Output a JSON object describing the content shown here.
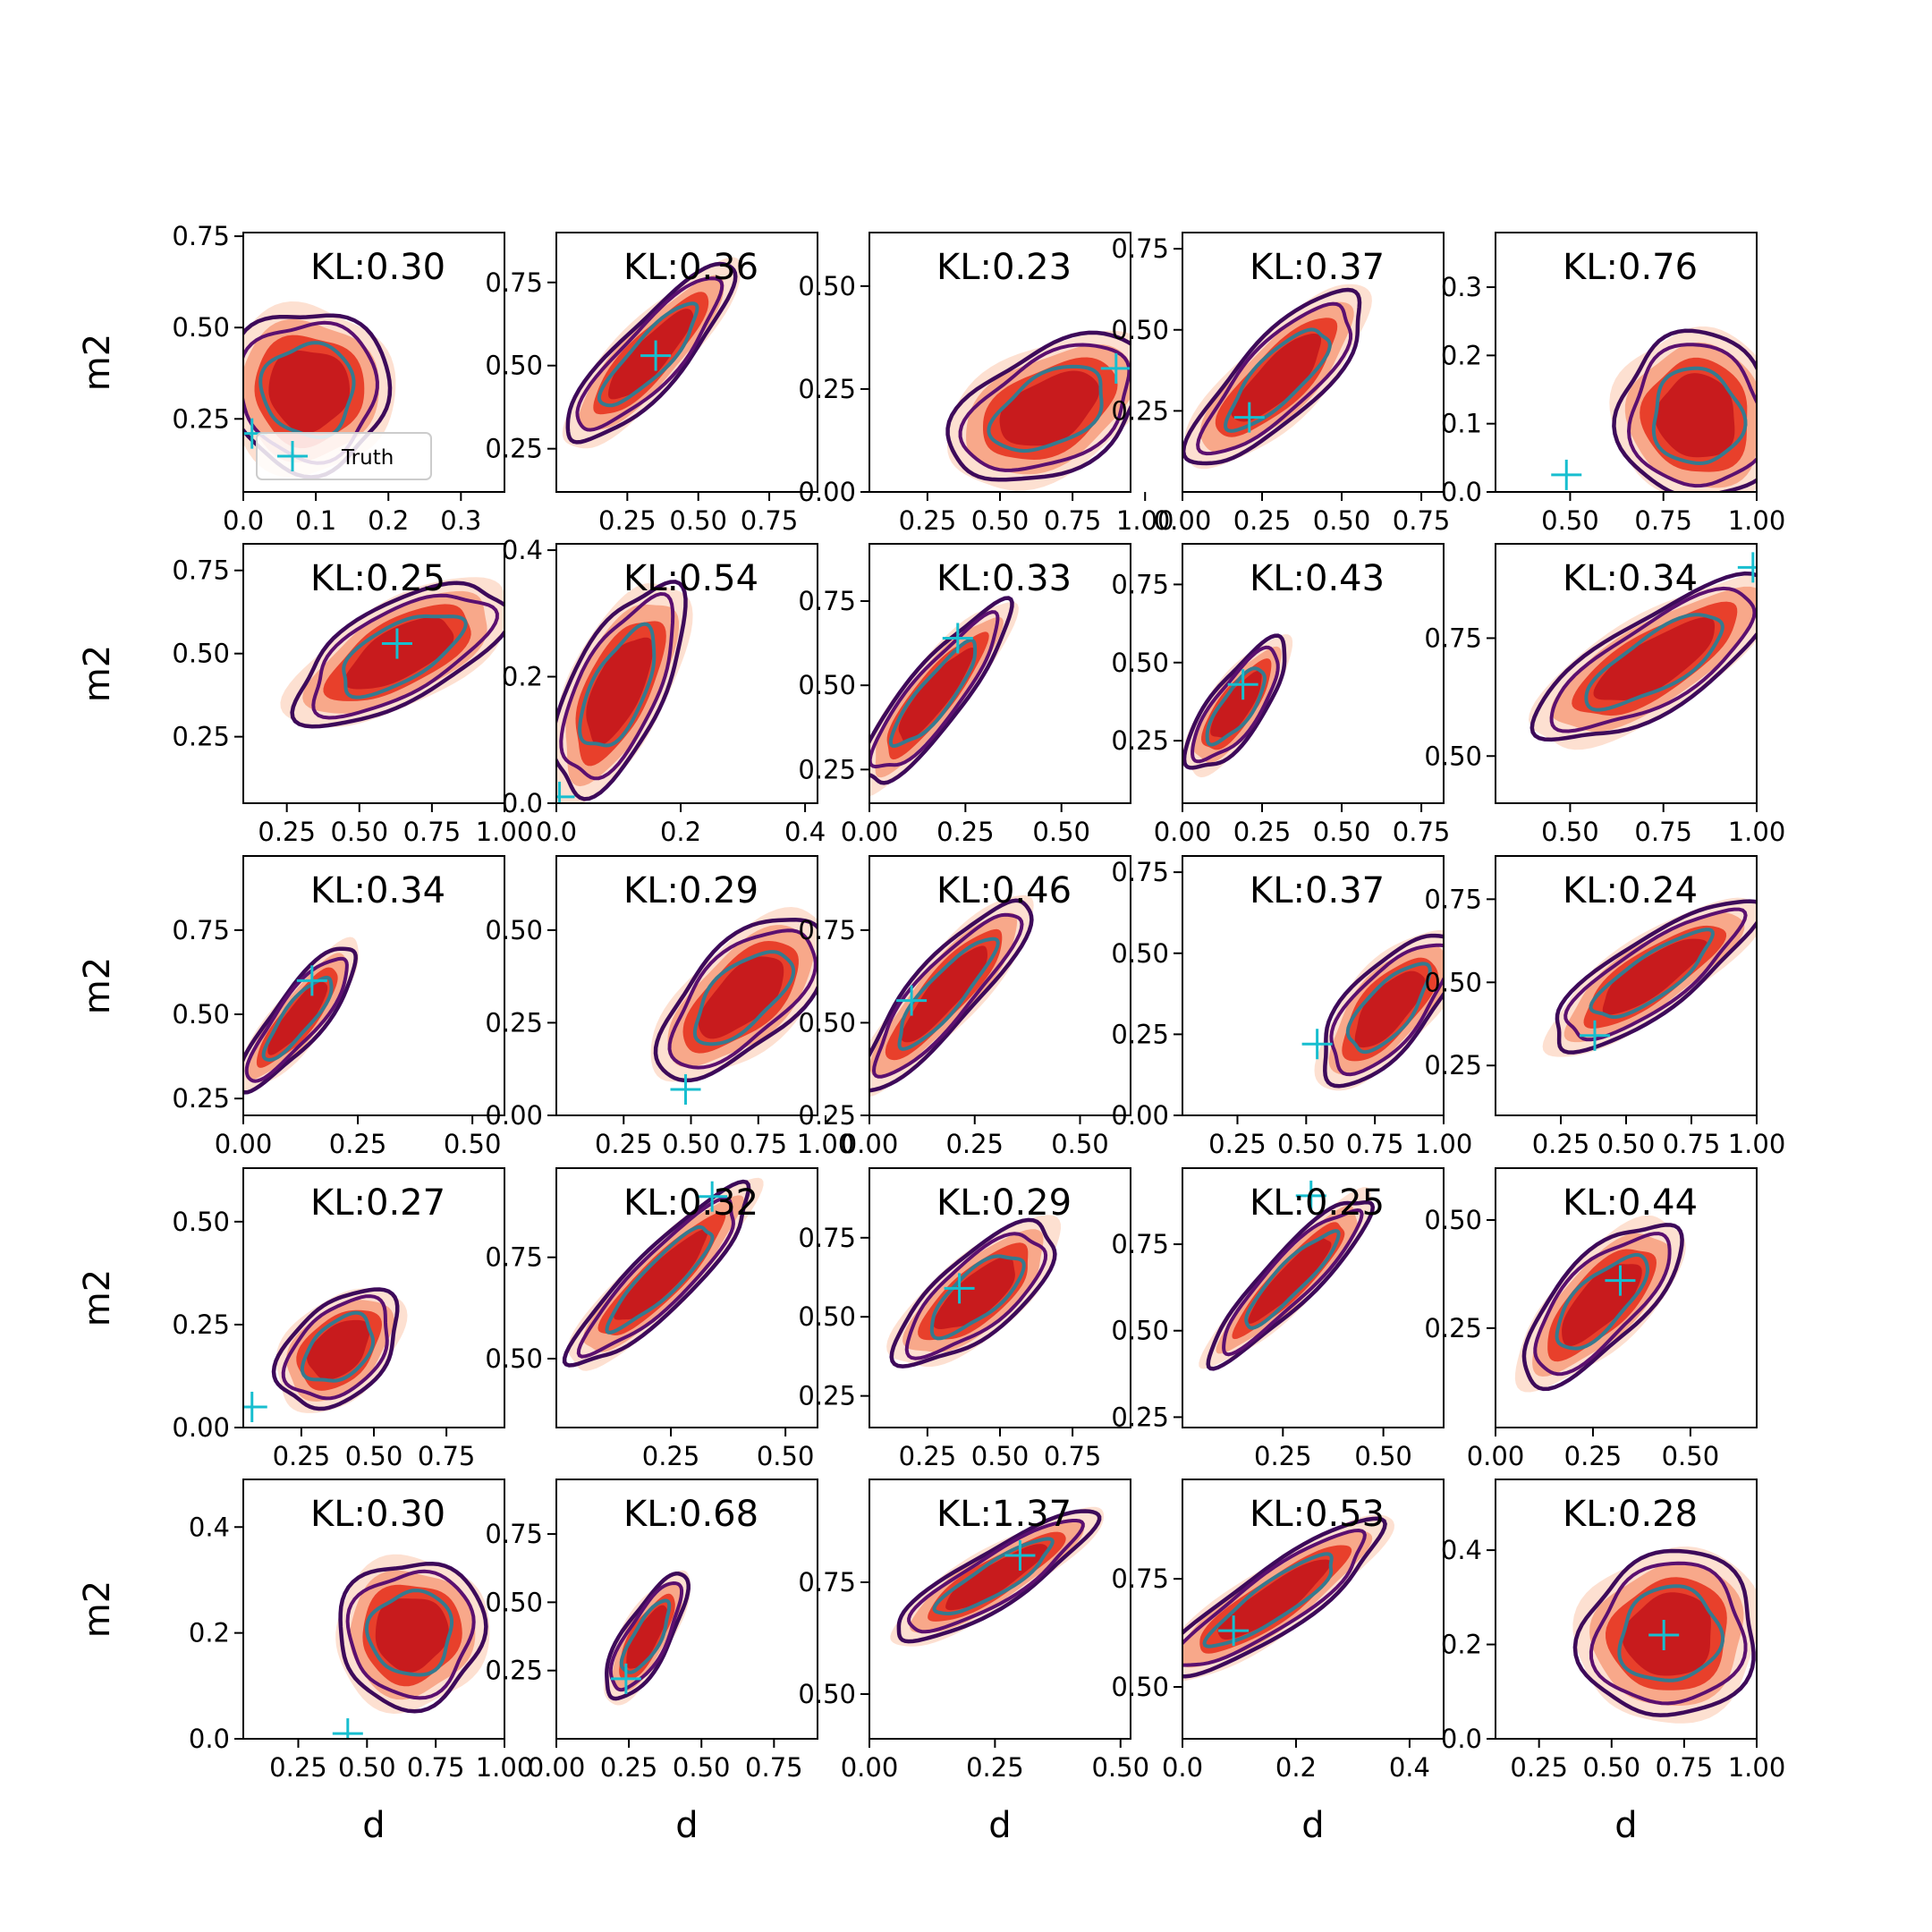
{
  "colors": {
    "fill_outer": "#fde0d1",
    "fill_mid": "#f8a88a",
    "fill_inner": "#e8402b",
    "fill_core": "#c81b1d",
    "contour_outer": "#3d0a5a",
    "contour_mid": "#5b1070",
    "contour_inner": "#357a8f",
    "truth": "#17becf"
  },
  "legend": {
    "label": "Truth"
  },
  "chart_data": [
    {
      "type": "contour",
      "kl": "KL:0.30",
      "xlim": [
        0,
        0.36
      ],
      "ylim": [
        0.05,
        0.76
      ],
      "xticks": [
        "0.0",
        "0.1",
        "0.2",
        "0.3"
      ],
      "xticks_v": [
        0,
        0.1,
        0.2,
        0.3
      ],
      "yticks": [
        "0.25",
        "0.50",
        "0.75"
      ],
      "yticks_v": [
        0.25,
        0.5,
        0.75
      ],
      "truth": [
        0.012,
        0.21
      ],
      "c": [
        0.09,
        0.33
      ],
      "w": 0.09,
      "h": 0.18,
      "ang": 0.55,
      "xlabel": "",
      "ylabel": "m2",
      "legend": true
    },
    {
      "type": "contour",
      "kl": "KL:0.36",
      "xlim": [
        0,
        0.92
      ],
      "ylim": [
        0.12,
        0.9
      ],
      "xticks": [
        "0.25",
        "0.50",
        "0.75"
      ],
      "xticks_v": [
        0.25,
        0.5,
        0.75
      ],
      "yticks": [
        "0.25",
        "0.50",
        "0.75"
      ],
      "yticks_v": [
        0.25,
        0.5,
        0.75
      ],
      "truth": [
        0.35,
        0.53
      ],
      "c": [
        0.33,
        0.53
      ],
      "w": 0.34,
      "h": 0.08,
      "ang": 0.82,
      "xlabel": "",
      "ylabel": ""
    },
    {
      "type": "contour",
      "kl": "KL:0.23",
      "xlim": [
        0.05,
        0.95
      ],
      "ylim": [
        0,
        0.63
      ],
      "xticks": [
        "0.25",
        "0.50",
        "0.75",
        "1.00"
      ],
      "xticks_v": [
        0.25,
        0.5,
        0.75,
        1.0
      ],
      "yticks": [
        "0.00",
        "0.25",
        "0.50"
      ],
      "yticks_v": [
        0,
        0.25,
        0.5
      ],
      "truth": [
        0.9,
        0.3
      ],
      "c": [
        0.67,
        0.2
      ],
      "w": 0.3,
      "h": 0.12,
      "ang": 0.5,
      "xlabel": "",
      "ylabel": ""
    },
    {
      "type": "contour",
      "kl": "KL:0.37",
      "xlim": [
        0,
        0.82
      ],
      "ylim": [
        0,
        0.8
      ],
      "xticks": [
        "0.00",
        "0.25",
        "0.50",
        "0.75"
      ],
      "xticks_v": [
        0,
        0.25,
        0.5,
        0.75
      ],
      "yticks": [
        "0.25",
        "0.50",
        "0.75"
      ],
      "yticks_v": [
        0.25,
        0.5,
        0.75
      ],
      "truth": [
        0.21,
        0.23
      ],
      "c": [
        0.3,
        0.35
      ],
      "w": 0.3,
      "h": 0.1,
      "ang": 0.78,
      "xlabel": "",
      "ylabel": ""
    },
    {
      "type": "contour",
      "kl": "KL:0.76",
      "xlim": [
        0.3,
        1.0
      ],
      "ylim": [
        0,
        0.38
      ],
      "xticks": [
        "0.50",
        "0.75",
        "1.00"
      ],
      "xticks_v": [
        0.5,
        0.75,
        1.0
      ],
      "yticks": [
        "0.0",
        "0.1",
        "0.2",
        "0.3"
      ],
      "yticks_v": [
        0,
        0.1,
        0.2,
        0.3
      ],
      "truth": [
        0.49,
        0.025
      ],
      "c": [
        0.84,
        0.11
      ],
      "w": 0.17,
      "h": 0.1,
      "ang": 0.3,
      "xlabel": "",
      "ylabel": ""
    },
    {
      "type": "contour",
      "kl": "KL:0.25",
      "xlim": [
        0.1,
        1.0
      ],
      "ylim": [
        0.05,
        0.83
      ],
      "xticks": [
        "0.25",
        "0.50",
        "0.75",
        "1.00"
      ],
      "xticks_v": [
        0.25,
        0.5,
        0.75,
        1.0
      ],
      "yticks": [
        "0.25",
        "0.50",
        "0.75"
      ],
      "yticks_v": [
        0.25,
        0.5,
        0.75
      ],
      "truth": [
        0.63,
        0.53
      ],
      "c": [
        0.64,
        0.5
      ],
      "w": 0.33,
      "h": 0.12,
      "ang": 0.5,
      "xlabel": "",
      "ylabel": "m2"
    },
    {
      "type": "contour",
      "kl": "KL:0.54",
      "xlim": [
        0,
        0.42
      ],
      "ylim": [
        0,
        0.41
      ],
      "xticks": [
        "0.0",
        "0.2",
        "0.4"
      ],
      "xticks_v": [
        0,
        0.2,
        0.4
      ],
      "yticks": [
        "0.0",
        "0.2",
        "0.4"
      ],
      "yticks_v": [
        0,
        0.2,
        0.4
      ],
      "truth": [
        0.005,
        0.01
      ],
      "c": [
        0.1,
        0.18
      ],
      "w": 0.15,
      "h": 0.06,
      "ang": 1.12,
      "xlabel": "",
      "ylabel": ""
    },
    {
      "type": "contour",
      "kl": "KL:0.33",
      "xlim": [
        0,
        0.68
      ],
      "ylim": [
        0.15,
        0.92
      ],
      "xticks": [
        "0.00",
        "0.25",
        "0.50"
      ],
      "xticks_v": [
        0,
        0.25,
        0.5
      ],
      "yticks": [
        "0.25",
        "0.50",
        "0.75"
      ],
      "yticks_v": [
        0.25,
        0.5,
        0.75
      ],
      "truth": [
        0.23,
        0.64
      ],
      "c": [
        0.17,
        0.47
      ],
      "w": 0.24,
      "h": 0.07,
      "ang": 0.9,
      "xlabel": "",
      "ylabel": ""
    },
    {
      "type": "contour",
      "kl": "KL:0.43",
      "xlim": [
        0,
        0.82
      ],
      "ylim": [
        0.05,
        0.88
      ],
      "xticks": [
        "0.00",
        "0.25",
        "0.50",
        "0.75"
      ],
      "xticks_v": [
        0,
        0.25,
        0.5,
        0.75
      ],
      "yticks": [
        "0.25",
        "0.50",
        "0.75"
      ],
      "yticks_v": [
        0.25,
        0.5,
        0.75
      ],
      "truth": [
        0.19,
        0.43
      ],
      "c": [
        0.17,
        0.36
      ],
      "w": 0.2,
      "h": 0.07,
      "ang": 0.95,
      "xlabel": "",
      "ylabel": ""
    },
    {
      "type": "contour",
      "kl": "KL:0.34",
      "xlim": [
        0.3,
        1.0
      ],
      "ylim": [
        0.4,
        0.95
      ],
      "xticks": [
        "0.50",
        "0.75",
        "1.00"
      ],
      "xticks_v": [
        0.5,
        0.75,
        1.0
      ],
      "yticks": [
        "0.50",
        "0.75"
      ],
      "yticks_v": [
        0.5,
        0.75
      ],
      "truth": [
        0.99,
        0.9
      ],
      "c": [
        0.73,
        0.7
      ],
      "w": 0.3,
      "h": 0.08,
      "ang": 0.55,
      "xlabel": "",
      "ylabel": ""
    },
    {
      "type": "contour",
      "kl": "KL:0.34",
      "xlim": [
        0,
        0.57
      ],
      "ylim": [
        0.2,
        0.97
      ],
      "xticks": [
        "0.00",
        "0.25",
        "0.50"
      ],
      "xticks_v": [
        0,
        0.25,
        0.5
      ],
      "yticks": [
        "0.25",
        "0.50",
        "0.75"
      ],
      "yticks_v": [
        0.25,
        0.5,
        0.75
      ],
      "truth": [
        0.15,
        0.6
      ],
      "c": [
        0.12,
        0.49
      ],
      "w": 0.16,
      "h": 0.06,
      "ang": 0.9,
      "xlabel": "",
      "ylabel": "m2"
    },
    {
      "type": "contour",
      "kl": "KL:0.29",
      "xlim": [
        0,
        0.97
      ],
      "ylim": [
        0,
        0.7
      ],
      "xticks": [
        "0.25",
        "0.50",
        "0.75",
        "1.00"
      ],
      "xticks_v": [
        0.25,
        0.5,
        0.75,
        1.0
      ],
      "yticks": [
        "0.00",
        "0.25",
        "0.50"
      ],
      "yticks_v": [
        0,
        0.25,
        0.5
      ],
      "truth": [
        0.48,
        0.07
      ],
      "c": [
        0.69,
        0.32
      ],
      "w": 0.32,
      "h": 0.11,
      "ang": 0.75,
      "xlabel": "",
      "ylabel": ""
    },
    {
      "type": "contour",
      "kl": "KL:0.46",
      "xlim": [
        0,
        0.62
      ],
      "ylim": [
        0.25,
        0.95
      ],
      "xticks": [
        "0.00",
        "0.25",
        "0.50"
      ],
      "xticks_v": [
        0,
        0.25,
        0.5
      ],
      "yticks": [
        "0.25",
        "0.50",
        "0.75"
      ],
      "yticks_v": [
        0.25,
        0.5,
        0.75
      ],
      "truth": [
        0.1,
        0.56
      ],
      "c": [
        0.18,
        0.58
      ],
      "w": 0.24,
      "h": 0.07,
      "ang": 0.85,
      "xlabel": "",
      "ylabel": ""
    },
    {
      "type": "contour",
      "kl": "KL:0.37",
      "xlim": [
        0.05,
        1.0
      ],
      "ylim": [
        0,
        0.8
      ],
      "xticks": [
        "0.25",
        "0.50",
        "0.75",
        "1.00"
      ],
      "xticks_v": [
        0.25,
        0.5,
        0.75,
        1.0
      ],
      "yticks": [
        "0.00",
        "0.25",
        "0.50",
        "0.75"
      ],
      "yticks_v": [
        0,
        0.25,
        0.5,
        0.75
      ],
      "truth": [
        0.54,
        0.22
      ],
      "c": [
        0.8,
        0.33
      ],
      "w": 0.28,
      "h": 0.1,
      "ang": 0.85,
      "xlabel": "",
      "ylabel": ""
    },
    {
      "type": "contour",
      "kl": "KL:0.24",
      "xlim": [
        0,
        1.0
      ],
      "ylim": [
        0.1,
        0.88
      ],
      "xticks": [
        "0.25",
        "0.50",
        "0.75",
        "1.00"
      ],
      "xticks_v": [
        0.25,
        0.5,
        0.75,
        1.0
      ],
      "yticks": [
        "0.25",
        "0.50",
        "0.75"
      ],
      "yticks_v": [
        0.25,
        0.5,
        0.75
      ],
      "truth": [
        0.38,
        0.34
      ],
      "c": [
        0.6,
        0.52
      ],
      "w": 0.38,
      "h": 0.09,
      "ang": 0.6,
      "xlabel": "",
      "ylabel": ""
    },
    {
      "type": "contour",
      "kl": "KL:0.27",
      "xlim": [
        0.05,
        0.95
      ],
      "ylim": [
        0,
        0.63
      ],
      "xticks": [
        "0.25",
        "0.50",
        "0.75"
      ],
      "xticks_v": [
        0.25,
        0.5,
        0.75
      ],
      "yticks": [
        "0.00",
        "0.25",
        "0.50"
      ],
      "yticks_v": [
        0,
        0.25,
        0.5
      ],
      "truth": [
        0.08,
        0.05
      ],
      "c": [
        0.38,
        0.19
      ],
      "w": 0.2,
      "h": 0.09,
      "ang": 0.75,
      "xlabel": "",
      "ylabel": "m2"
    },
    {
      "type": "contour",
      "kl": "KL:0.32",
      "xlim": [
        0,
        0.57
      ],
      "ylim": [
        0.33,
        0.97
      ],
      "xticks": [
        "0.25",
        "0.50"
      ],
      "xticks_v": [
        0.25,
        0.5
      ],
      "yticks": [
        "0.50",
        "0.75"
      ],
      "yticks_v": [
        0.5,
        0.75
      ],
      "truth": [
        0.34,
        0.9
      ],
      "c": [
        0.23,
        0.7
      ],
      "w": 0.22,
      "h": 0.06,
      "ang": 0.78,
      "xlabel": "",
      "ylabel": ""
    },
    {
      "type": "contour",
      "kl": "KL:0.29",
      "xlim": [
        0.05,
        0.95
      ],
      "ylim": [
        0.15,
        0.97
      ],
      "xticks": [
        "0.25",
        "0.50",
        "0.75"
      ],
      "xticks_v": [
        0.25,
        0.5,
        0.75
      ],
      "yticks": [
        "0.25",
        "0.50",
        "0.75"
      ],
      "yticks_v": [
        0.25,
        0.5,
        0.75
      ],
      "truth": [
        0.36,
        0.59
      ],
      "c": [
        0.42,
        0.57
      ],
      "w": 0.28,
      "h": 0.1,
      "ang": 0.7,
      "xlabel": "",
      "ylabel": ""
    },
    {
      "type": "contour",
      "kl": "KL:0.25",
      "xlim": [
        0,
        0.65
      ],
      "ylim": [
        0.22,
        0.97
      ],
      "xticks": [
        "0.25",
        "0.50"
      ],
      "xticks_v": [
        0.25,
        0.5
      ],
      "yticks": [
        "0.25",
        "0.50",
        "0.75"
      ],
      "yticks_v": [
        0.25,
        0.5,
        0.75
      ],
      "truth": [
        0.32,
        0.89
      ],
      "c": [
        0.27,
        0.65
      ],
      "w": 0.23,
      "h": 0.06,
      "ang": 0.8,
      "xlabel": "",
      "ylabel": ""
    },
    {
      "type": "contour",
      "kl": "KL:0.44",
      "xlim": [
        0,
        0.67
      ],
      "ylim": [
        0.02,
        0.62
      ],
      "xticks": [
        "0.00",
        "0.25",
        "0.50"
      ],
      "xticks_v": [
        0,
        0.25,
        0.5
      ],
      "yticks": [
        "0.25",
        "0.50"
      ],
      "yticks_v": [
        0.25,
        0.5
      ],
      "truth": [
        0.32,
        0.36
      ],
      "c": [
        0.27,
        0.31
      ],
      "w": 0.22,
      "h": 0.08,
      "ang": 0.8,
      "xlabel": "",
      "ylabel": ""
    },
    {
      "type": "contour",
      "kl": "KL:0.30",
      "xlim": [
        0.05,
        1.0
      ],
      "ylim": [
        0,
        0.49
      ],
      "xticks": [
        "0.25",
        "0.50",
        "0.75",
        "1.00"
      ],
      "xticks_v": [
        0.25,
        0.5,
        0.75,
        1.0
      ],
      "yticks": [
        "0.0",
        "0.2",
        "0.4"
      ],
      "yticks_v": [
        0,
        0.2,
        0.4
      ],
      "truth": [
        0.43,
        0.01
      ],
      "c": [
        0.66,
        0.2
      ],
      "w": 0.22,
      "h": 0.11,
      "ang": 0.85,
      "xlabel": "d",
      "ylabel": "m2"
    },
    {
      "type": "contour",
      "kl": "KL:0.68",
      "xlim": [
        0,
        0.9
      ],
      "ylim": [
        0,
        0.95
      ],
      "xticks": [
        "0.00",
        "0.25",
        "0.50",
        "0.75"
      ],
      "xticks_v": [
        0,
        0.25,
        0.5,
        0.75
      ],
      "yticks": [
        "0.25",
        "0.50",
        "0.75"
      ],
      "yticks_v": [
        0.25,
        0.5,
        0.75
      ],
      "truth": [
        0.24,
        0.22
      ],
      "c": [
        0.31,
        0.37
      ],
      "w": 0.2,
      "h": 0.07,
      "ang": 1.05,
      "xlabel": "d",
      "ylabel": ""
    },
    {
      "type": "contour",
      "kl": "KL:1.37",
      "xlim": [
        0,
        0.52
      ],
      "ylim": [
        0.4,
        0.98
      ],
      "xticks": [
        "0.00",
        "0.25",
        "0.50"
      ],
      "xticks_v": [
        0,
        0.25,
        0.5
      ],
      "yticks": [
        "0.50",
        "0.75"
      ],
      "yticks_v": [
        0.5,
        0.75
      ],
      "truth": [
        0.3,
        0.81
      ],
      "c": [
        0.25,
        0.76
      ],
      "w": 0.19,
      "h": 0.05,
      "ang": 0.55,
      "xlabel": "d",
      "ylabel": ""
    },
    {
      "type": "contour",
      "kl": "KL:0.53",
      "xlim": [
        0,
        0.46
      ],
      "ylim": [
        0.38,
        0.98
      ],
      "xticks": [
        "0.0",
        "0.2",
        "0.4"
      ],
      "xticks_v": [
        0,
        0.2,
        0.4
      ],
      "yticks": [
        "0.50",
        "0.75"
      ],
      "yticks_v": [
        0.5,
        0.75
      ],
      "truth": [
        0.09,
        0.63
      ],
      "c": [
        0.16,
        0.7
      ],
      "w": 0.19,
      "h": 0.06,
      "ang": 0.6,
      "xlabel": "d",
      "ylabel": ""
    },
    {
      "type": "contour",
      "kl": "KL:0.28",
      "xlim": [
        0.1,
        1.0
      ],
      "ylim": [
        0,
        0.55
      ],
      "xticks": [
        "0.25",
        "0.50",
        "0.75",
        "1.00"
      ],
      "xticks_v": [
        0.25,
        0.5,
        0.75,
        1.0
      ],
      "yticks": [
        "0.0",
        "0.2",
        "0.4"
      ],
      "yticks_v": [
        0,
        0.2,
        0.4
      ],
      "truth": [
        0.68,
        0.22
      ],
      "c": [
        0.7,
        0.22
      ],
      "w": 0.25,
      "h": 0.14,
      "ang": 0.45,
      "xlabel": "d",
      "ylabel": ""
    }
  ]
}
